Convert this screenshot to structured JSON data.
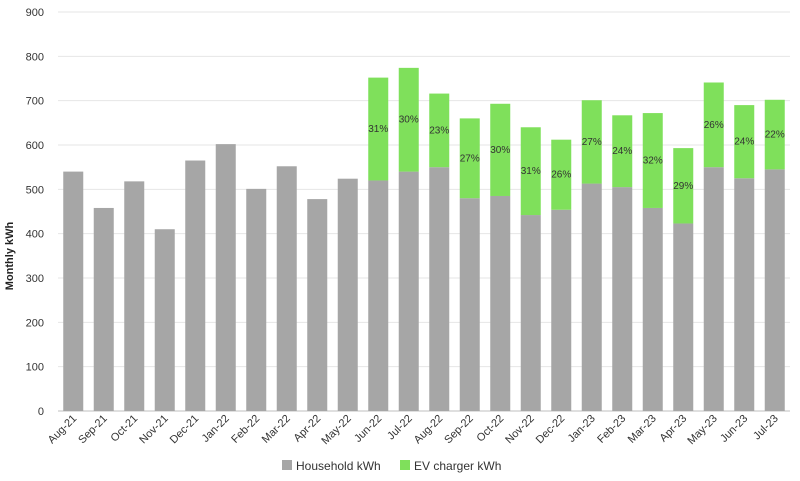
{
  "chart_data": {
    "type": "bar",
    "stacked": true,
    "ylabel": "Monthly kWh",
    "ylim": [
      0,
      900
    ],
    "yticks": [
      0,
      100,
      200,
      300,
      400,
      500,
      600,
      700,
      800,
      900
    ],
    "grid": true,
    "legend_position": "bottom",
    "categories": [
      "Aug-21",
      "Sep-21",
      "Oct-21",
      "Nov-21",
      "Dec-21",
      "Jan-22",
      "Feb-22",
      "Mar-22",
      "Apr-22",
      "May-22",
      "Jun-22",
      "Jul-22",
      "Aug-22",
      "Sep-22",
      "Oct-22",
      "Nov-22",
      "Dec-22",
      "Jan-23",
      "Feb-23",
      "Mar-23",
      "Apr-23",
      "May-23",
      "Jun-23",
      "Jul-23"
    ],
    "series": [
      {
        "name": "Household kWh",
        "color": "#a6a6a6",
        "values": [
          540,
          458,
          518,
          410,
          565,
          602,
          501,
          552,
          478,
          524,
          520,
          540,
          550,
          480,
          485,
          442,
          454,
          513,
          505,
          458,
          423,
          550,
          525,
          545
        ]
      },
      {
        "name": "EV charger kWh",
        "color": "#7fe05b",
        "values": [
          0,
          0,
          0,
          0,
          0,
          0,
          0,
          0,
          0,
          0,
          232,
          234,
          166,
          180,
          208,
          198,
          158,
          188,
          162,
          214,
          170,
          191,
          165,
          157
        ]
      }
    ],
    "ev_share_labels": [
      "",
      "",
      "",
      "",
      "",
      "",
      "",
      "",
      "",
      "",
      "31%",
      "30%",
      "23%",
      "27%",
      "30%",
      "31%",
      "26%",
      "27%",
      "24%",
      "32%",
      "29%",
      "26%",
      "24%",
      "22%"
    ]
  }
}
